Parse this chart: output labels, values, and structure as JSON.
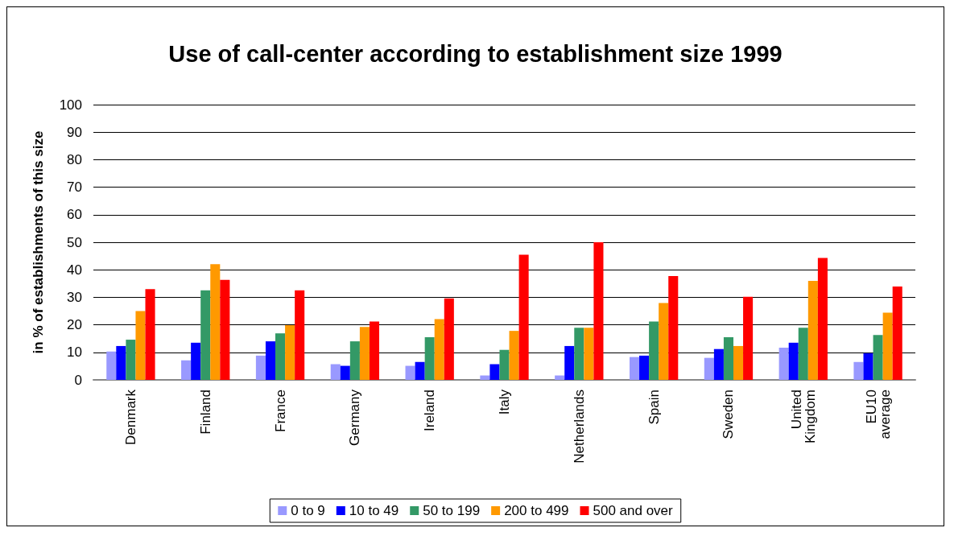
{
  "chart_data": {
    "type": "bar",
    "title": "Use of call-center according to establishment size 1999",
    "ylabel": "in % of establishments of this size",
    "categories": [
      "Denmark",
      "Finland",
      "France",
      "Germany",
      "Ireland",
      "Italy",
      "Netherlands",
      "Spain",
      "Sweden",
      "United Kingdom",
      "EU10 average"
    ],
    "series": [
      {
        "name": "0 to 9",
        "color": "#9999ff",
        "values": [
          10.3,
          7.1,
          8.8,
          5.7,
          5.1,
          1.6,
          1.6,
          8.3,
          8.0,
          11.7,
          6.5
        ]
      },
      {
        "name": "10 to 49",
        "color": "#0000ff",
        "values": [
          12.3,
          13.5,
          14.0,
          5.1,
          6.5,
          5.7,
          12.3,
          8.8,
          11.2,
          13.5,
          9.7
        ]
      },
      {
        "name": "50 to 199",
        "color": "#339966",
        "values": [
          14.6,
          32.5,
          16.9,
          14.0,
          15.5,
          10.9,
          18.9,
          21.2,
          15.5,
          18.9,
          16.3
        ]
      },
      {
        "name": "200 to 499",
        "color": "#ff9900",
        "values": [
          25.0,
          42.0,
          19.9,
          19.2,
          22.1,
          17.8,
          18.9,
          27.9,
          12.3,
          36.0,
          24.4
        ]
      },
      {
        "name": "500 and over",
        "color": "#ff0000",
        "values": [
          33.0,
          36.3,
          32.5,
          21.2,
          29.6,
          45.5,
          50.0,
          37.7,
          30.2,
          44.3,
          33.9
        ]
      }
    ],
    "ylim": [
      0,
      100
    ],
    "yticks": [
      0,
      10,
      20,
      30,
      40,
      50,
      60,
      70,
      80,
      90,
      100
    ],
    "grid": "y",
    "legend": "bottom"
  }
}
